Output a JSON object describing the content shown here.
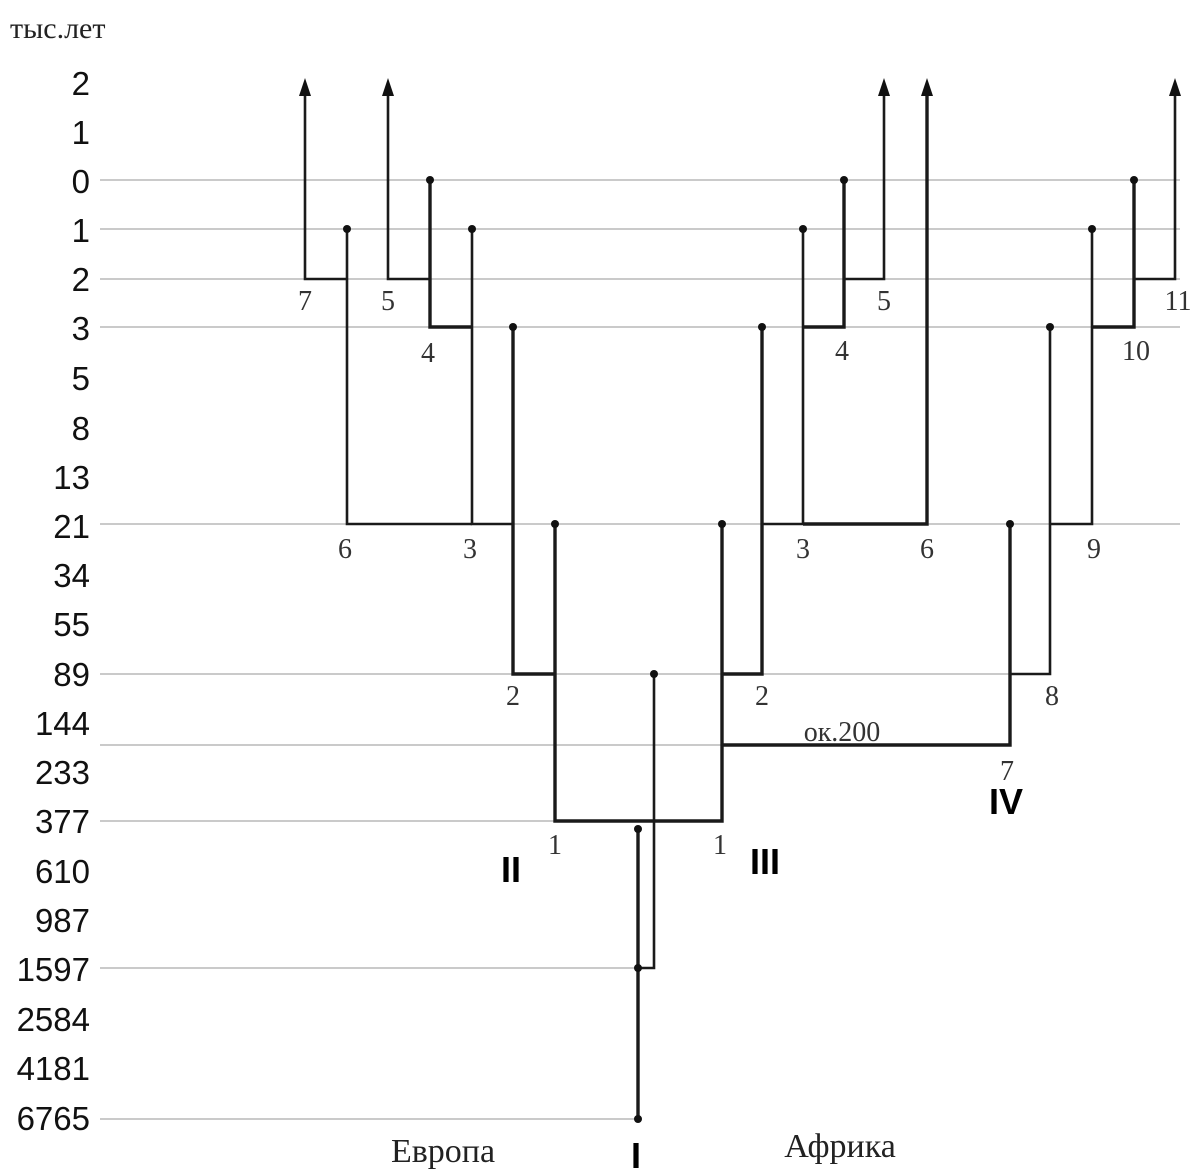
{
  "axis": {
    "unit": "тыс.лет",
    "ticks": [
      "2",
      "1",
      "0",
      "1",
      "2",
      "3",
      "5",
      "8",
      "13",
      "21",
      "34",
      "55",
      "89",
      "144",
      "233",
      "377",
      "610",
      "987",
      "1597",
      "2584",
      "4181",
      "6765"
    ]
  },
  "regions": {
    "left": "Европа",
    "right": "Африка"
  },
  "branches": {
    "I": "I",
    "II": "II",
    "III": "III",
    "IV": "IV"
  },
  "annotation": "ок.200",
  "node_labels": {
    "eu_7": "7",
    "eu_5": "5",
    "eu_4": "4",
    "eu_6": "6",
    "eu_3": "3",
    "eu_2": "2",
    "eu_1": "1",
    "af_1": "1",
    "af_2": "2",
    "af_3": "3",
    "af_4": "4",
    "af_5": "5",
    "af_6": "6",
    "iv_7": "7",
    "iv_8": "8",
    "iv_9": "9",
    "iv_10": "10",
    "iv_11": "11"
  }
}
